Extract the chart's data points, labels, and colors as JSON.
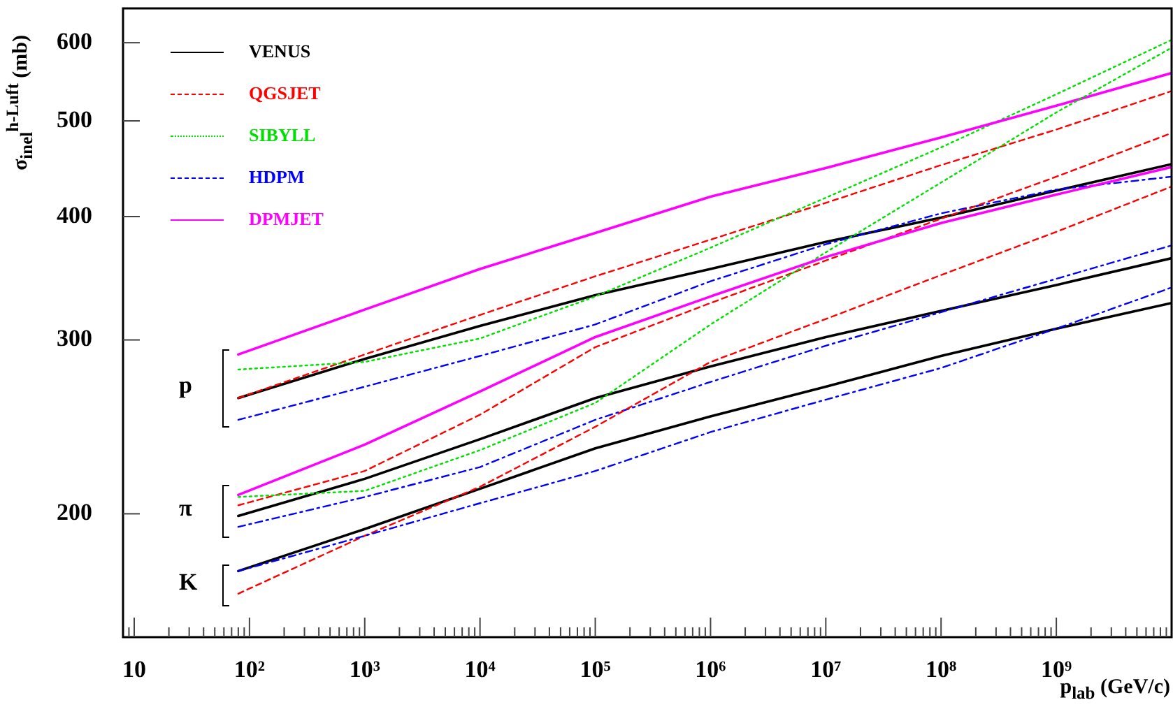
{
  "chart_data": {
    "type": "line",
    "xlabel": "p$_{lab}$  (GeV/c)",
    "ylabel": "σ$_{inel}$$^{h-Luft}$  (mb)",
    "x": [
      80,
      1000,
      10000,
      100000,
      1000000,
      10000000,
      100000000,
      1000000000,
      10000000000
    ],
    "xlim": [
      8,
      10000000000
    ],
    "xticks": [
      {
        "value": 9,
        "label": null
      },
      10,
      {
        "value": 20,
        "label": null
      },
      {
        "value": 30,
        "label": null
      },
      {
        "value": 40,
        "label": null
      },
      {
        "value": 50,
        "label": null
      },
      {
        "value": 60,
        "label": null
      },
      {
        "value": 70,
        "label": null
      },
      {
        "value": 80,
        "label": null
      },
      {
        "value": 90,
        "label": null
      },
      {
        "value": 100,
        "label": "10²"
      },
      {
        "value": 200,
        "label": null
      },
      {
        "value": 300,
        "label": null
      },
      {
        "value": 400,
        "label": null
      },
      {
        "value": 500,
        "label": null
      },
      {
        "value": 600,
        "label": null
      },
      {
        "value": 700,
        "label": null
      },
      {
        "value": 800,
        "label": null
      },
      {
        "value": 900,
        "label": null
      },
      {
        "value": 1000,
        "label": "10³"
      },
      {
        "value": 2000,
        "label": null
      },
      {
        "value": 3000,
        "label": null
      },
      {
        "value": 4000,
        "label": null
      },
      {
        "value": 5000,
        "label": null
      },
      {
        "value": 6000,
        "label": null
      },
      {
        "value": 7000,
        "label": null
      },
      {
        "value": 8000,
        "label": null
      },
      {
        "value": 9000,
        "label": null
      },
      {
        "value": 10000,
        "label": "10⁴"
      },
      {
        "value": 20000,
        "label": null
      },
      {
        "value": 30000,
        "label": null
      },
      {
        "value": 40000,
        "label": null
      },
      {
        "value": 50000,
        "label": null
      },
      {
        "value": 60000,
        "label": null
      },
      {
        "value": 70000,
        "label": null
      },
      {
        "value": 80000,
        "label": null
      },
      {
        "value": 90000,
        "label": null
      },
      {
        "value": 100000,
        "label": "10⁵"
      },
      {
        "value": 200000,
        "label": null
      },
      {
        "value": 300000,
        "label": null
      },
      {
        "value": 400000,
        "label": null
      },
      {
        "value": 500000,
        "label": null
      },
      {
        "value": 600000,
        "label": null
      },
      {
        "value": 700000,
        "label": null
      },
      {
        "value": 800000,
        "label": null
      },
      {
        "value": 900000,
        "label": null
      },
      {
        "value": 1000000,
        "label": "10⁶"
      },
      {
        "value": 2000000,
        "label": null
      },
      {
        "value": 3000000,
        "label": null
      },
      {
        "value": 4000000,
        "label": null
      },
      {
        "value": 5000000,
        "label": null
      },
      {
        "value": 6000000,
        "label": null
      },
      {
        "value": 7000000,
        "label": null
      },
      {
        "value": 8000000,
        "label": null
      },
      {
        "value": 9000000,
        "label": null
      },
      {
        "value": 10000000,
        "label": "10⁷"
      },
      {
        "value": 20000000,
        "label": null
      },
      {
        "value": 30000000,
        "label": null
      },
      {
        "value": 40000000,
        "label": null
      },
      {
        "value": 50000000,
        "label": null
      },
      {
        "value": 60000000,
        "label": null
      },
      {
        "value": 70000000,
        "label": null
      },
      {
        "value": 80000000,
        "label": null
      },
      {
        "value": 90000000,
        "label": null
      },
      {
        "value": 100000000,
        "label": "10⁸"
      },
      {
        "value": 200000000,
        "label": null
      },
      {
        "value": 300000000,
        "label": null
      },
      {
        "value": 400000000,
        "label": null
      },
      {
        "value": 500000000,
        "label": null
      },
      {
        "value": 600000000,
        "label": null
      },
      {
        "value": 700000000,
        "label": null
      },
      {
        "value": 800000000,
        "label": null
      },
      {
        "value": 900000000,
        "label": null
      },
      {
        "value": 1000000000,
        "label": "10⁹"
      },
      {
        "value": 2000000000,
        "label": null
      },
      {
        "value": 3000000000,
        "label": null
      },
      {
        "value": 4000000000,
        "label": null
      },
      {
        "value": 5000000000,
        "label": null
      },
      {
        "value": 6000000000,
        "label": null
      },
      {
        "value": 7000000000,
        "label": null
      },
      {
        "value": 8000000000,
        "label": null
      },
      {
        "value": 9000000000,
        "label": null
      }
    ],
    "ylim": [
      150,
      650
    ],
    "yticks": [
      200,
      300,
      400,
      500,
      600
    ],
    "log": "xy",
    "grid": false,
    "legend": "top left",
    "marker": "none",
    "series": [
      {
        "name": "VENUS",
        "color": "#000000",
        "line_style": "solid",
        "values": [
          262,
          287,
          310,
          333,
          354,
          377,
          399,
          425,
          452
        ]
      },
      {
        "name": "QGSJET",
        "color": "#ff0000",
        "line_style": "dashed",
        "values": [
          262,
          290,
          318,
          348,
          379,
          413,
          451,
          490,
          536
        ]
      },
      {
        "name": "SIBYLL",
        "color": "#00e000",
        "line_style": "dotted",
        "values": [
          280,
          285,
          301,
          332,
          372,
          418,
          470,
          532,
          604
        ]
      },
      {
        "name": "HDPM",
        "color": "#0000ff",
        "line_style": "dashdot",
        "values": [
          249,
          269,
          289,
          311,
          344,
          375,
          403,
          426,
          439
        ]
      },
      {
        "name": "DPMJET",
        "color": "#ff00ff",
        "line_style": "solid",
        "values": [
          290,
          322,
          354,
          385,
          419,
          448,
          481,
          518,
          559
        ]
      },
      {
        "color": "#000000",
        "line_style": "solid",
        "values": [
          199,
          217,
          238,
          262,
          282,
          302,
          321,
          341,
          363
        ]
      },
      {
        "color": "#ff0000",
        "line_style": "dashed",
        "values": [
          204,
          221,
          252,
          295,
          327,
          361,
          398,
          439,
          486
        ]
      },
      {
        "color": "#00e000",
        "line_style": "dotted",
        "values": [
          208,
          211,
          232,
          259,
          311,
          368,
          433,
          510,
          593
        ]
      },
      {
        "color": "#0000ff",
        "line_style": "dashdot",
        "values": [
          194,
          208,
          223,
          249,
          272,
          296,
          320,
          346,
          374
        ]
      },
      {
        "color": "#ff00ff",
        "line_style": "solid",
        "values": [
          209,
          235,
          266,
          302,
          332,
          364,
          394,
          421,
          449
        ]
      },
      {
        "color": "#000000",
        "line_style": "solid",
        "values": [
          175,
          193,
          212,
          233,
          251,
          269,
          289,
          308,
          327
        ]
      },
      {
        "color": "#ff0000",
        "line_style": "dashed",
        "values": [
          166,
          190,
          213,
          245,
          285,
          315,
          349,
          386,
          429
        ]
      },
      {
        "color": "#0000ff",
        "line_style": "dashdot",
        "values": [
          175,
          190,
          205,
          221,
          242,
          261,
          281,
          308,
          339
        ]
      }
    ],
    "annotations": [
      "p",
      "π",
      "K"
    ]
  }
}
